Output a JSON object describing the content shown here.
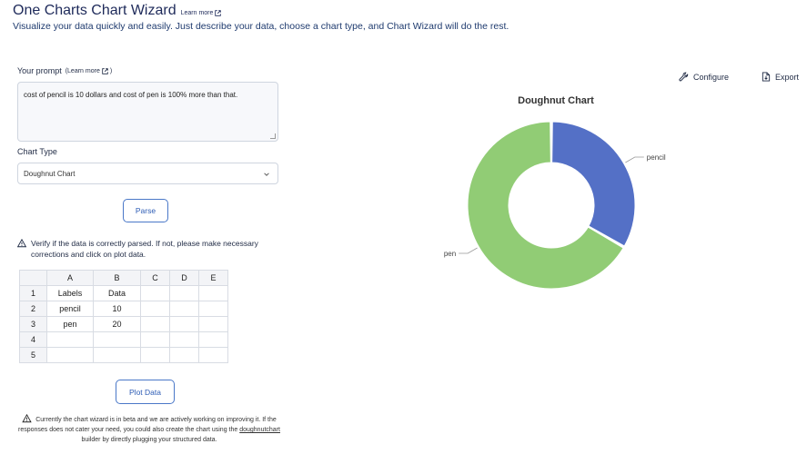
{
  "header": {
    "title": "One Charts Chart Wizard",
    "learn_more": "Learn more",
    "subtitle": "Visualize your data quickly and easily. Just describe your data, choose a chart type, and Chart Wizard will do the rest."
  },
  "prompt": {
    "label": "Your prompt",
    "learn_more": "(Learn more",
    "learn_more_close": ")",
    "value": "cost of pencil is 10 dollars and cost of pen is 100% more than that."
  },
  "chart_type": {
    "label": "Chart Type",
    "selected": "Doughnut Chart"
  },
  "buttons": {
    "parse": "Parse",
    "plot": "Plot Data",
    "configure": "Configure",
    "export": "Export"
  },
  "warning": "Verify if the data is correctly parsed. If not, please make necessary corrections and click on plot data.",
  "grid": {
    "columns": [
      "A",
      "B",
      "C",
      "D",
      "E"
    ],
    "rows": [
      {
        "n": "1",
        "cells": [
          "Labels",
          "Data",
          "",
          "",
          ""
        ]
      },
      {
        "n": "2",
        "cells": [
          "pencil",
          "10",
          "",
          "",
          ""
        ]
      },
      {
        "n": "3",
        "cells": [
          "pen",
          "20",
          "",
          "",
          ""
        ]
      },
      {
        "n": "4",
        "cells": [
          "",
          "",
          "",
          "",
          ""
        ]
      },
      {
        "n": "5",
        "cells": [
          "",
          "",
          "",
          "",
          ""
        ]
      }
    ]
  },
  "footer": {
    "line1": "Currently the chart wizard is in beta and we are actively working on improving it. If the responses does not cater your need, you could also create the chart using the ",
    "link": "doughnutchart",
    "line2": " builder by directly plugging your structured data."
  },
  "colors": {
    "pencil": "#5470c6",
    "pen": "#91cc75"
  },
  "chart_data": {
    "type": "pie",
    "variant": "doughnut",
    "title": "Doughnut Chart",
    "categories": [
      "pencil",
      "pen"
    ],
    "values": [
      10,
      20
    ],
    "legend": "none",
    "labels_outside": true
  }
}
